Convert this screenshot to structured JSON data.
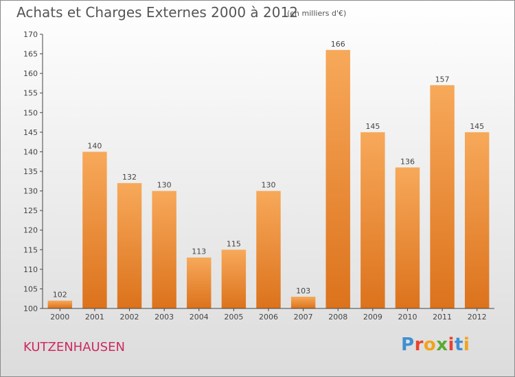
{
  "header": {
    "title": "Achats et Charges Externes 2000 à 2012",
    "unit": "(en milliers d'€)"
  },
  "footer": {
    "place": "KUTZENHAUSEN",
    "logo_text": "Proxiti"
  },
  "colors": {
    "bar_light": "#f7a95a",
    "bar_dark": "#dc721c",
    "logo": [
      "#3f8fd2",
      "#e8432e",
      "#f2a31b",
      "#5aaa32",
      "#e8432e",
      "#3f8fd2",
      "#f2a31b"
    ]
  },
  "chart_data": {
    "type": "bar",
    "title": "Achats et Charges Externes 2000 à 2012",
    "subtitle": "(en milliers d'€)",
    "categories": [
      "2000",
      "2001",
      "2002",
      "2003",
      "2004",
      "2005",
      "2006",
      "2007",
      "2008",
      "2009",
      "2010",
      "2011",
      "2012"
    ],
    "values": [
      102,
      140,
      132,
      130,
      113,
      115,
      130,
      103,
      166,
      145,
      136,
      157,
      145
    ],
    "ylim": [
      100,
      170
    ],
    "yticks": [
      100,
      105,
      110,
      115,
      120,
      125,
      130,
      135,
      140,
      145,
      150,
      155,
      160,
      165,
      170
    ],
    "grid": false,
    "legend": "none"
  }
}
